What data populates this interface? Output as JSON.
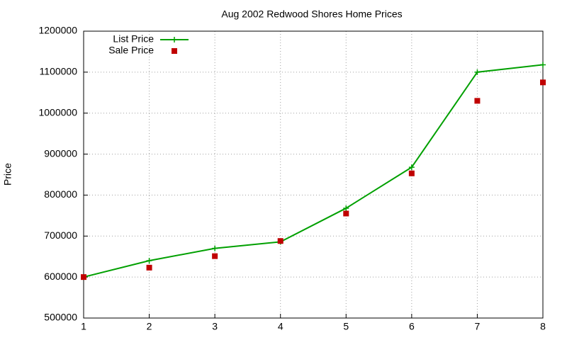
{
  "chart_data": {
    "type": "line",
    "title": "Aug 2002 Redwood Shores Home Prices",
    "y_label": "Price",
    "x": [
      1,
      2,
      3,
      4,
      5,
      6,
      7,
      8
    ],
    "series": [
      {
        "name": "List Price",
        "color": "#00a000",
        "line": true,
        "marker": "plus",
        "values": [
          600000,
          640000,
          670000,
          686000,
          768000,
          868000,
          1100000,
          1118000
        ]
      },
      {
        "name": "Sale Price",
        "color": "#c00000",
        "line": false,
        "marker": "square",
        "values": [
          600000,
          623000,
          651000,
          688000,
          755000,
          853000,
          1030000,
          1075000
        ]
      }
    ],
    "xlim": [
      1,
      8
    ],
    "xticks": [
      1,
      2,
      3,
      4,
      5,
      6,
      7,
      8
    ],
    "ylim": [
      500000,
      1200000
    ],
    "yticks": [
      500000,
      600000,
      700000,
      800000,
      900000,
      1000000,
      1100000,
      1200000
    ],
    "grid": true,
    "legend": "top-left"
  }
}
